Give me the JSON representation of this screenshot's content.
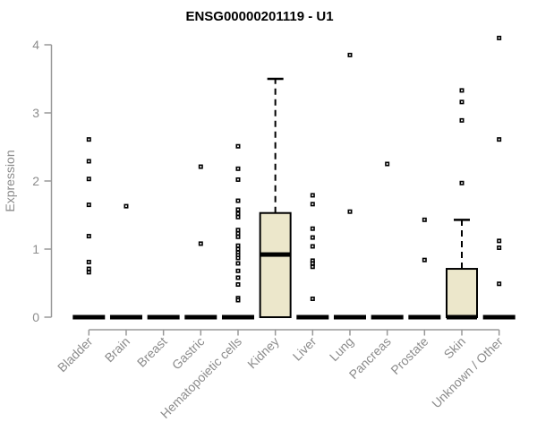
{
  "chart_data": {
    "type": "boxplot",
    "title": "ENSG00000201119 - U1",
    "ylabel": "Expression",
    "xlabel": "",
    "ylim": [
      0,
      4
    ],
    "y_ticks": [
      0,
      1,
      2,
      3,
      4
    ],
    "grid": false,
    "legend": false,
    "categories": [
      "Bladder",
      "Brain",
      "Breast",
      "Gastric",
      "Hematopoietic cells",
      "Kidney",
      "Liver",
      "Lung",
      "Pancreas",
      "Prostate",
      "Skin",
      "Unknown / Other"
    ],
    "boxes": [
      {
        "category": "Bladder",
        "q1": 0,
        "median": 0,
        "q3": 0,
        "whisker_high": null,
        "outliers": [
          2.61,
          2.29,
          2.03,
          1.65,
          1.19,
          0.81,
          0.71,
          0.66
        ]
      },
      {
        "category": "Brain",
        "q1": 0,
        "median": 0,
        "q3": 0,
        "whisker_high": null,
        "outliers": [
          1.63
        ]
      },
      {
        "category": "Breast",
        "q1": 0,
        "median": 0,
        "q3": 0,
        "whisker_high": null,
        "outliers": []
      },
      {
        "category": "Gastric",
        "q1": 0,
        "median": 0,
        "q3": 0,
        "whisker_high": null,
        "outliers": [
          2.21,
          1.08
        ]
      },
      {
        "category": "Hematopoietic cells",
        "q1": 0,
        "median": 0,
        "q3": 0,
        "whisker_high": null,
        "outliers": [
          2.51,
          2.18,
          2.02,
          1.71,
          1.58,
          1.52,
          1.47,
          1.28,
          1.23,
          1.18,
          1.05,
          1.0,
          0.95,
          0.91,
          0.87,
          0.79,
          0.68,
          0.58,
          0.48,
          0.28,
          0.25
        ]
      },
      {
        "category": "Kidney",
        "q1": 0,
        "median": 0.92,
        "q3": 1.53,
        "whisker_high": 3.5,
        "outliers": []
      },
      {
        "category": "Liver",
        "q1": 0,
        "median": 0,
        "q3": 0,
        "whisker_high": null,
        "outliers": [
          1.79,
          1.66,
          1.3,
          1.17,
          1.04,
          0.83,
          0.79,
          0.74,
          0.27
        ]
      },
      {
        "category": "Lung",
        "q1": 0,
        "median": 0,
        "q3": 0,
        "whisker_high": null,
        "outliers": [
          3.85,
          1.55
        ]
      },
      {
        "category": "Pancreas",
        "q1": 0,
        "median": 0,
        "q3": 0,
        "whisker_high": null,
        "outliers": [
          2.25
        ]
      },
      {
        "category": "Prostate",
        "q1": 0,
        "median": 0,
        "q3": 0,
        "whisker_high": null,
        "outliers": [
          1.43,
          0.84
        ]
      },
      {
        "category": "Skin",
        "q1": 0,
        "median": 0,
        "q3": 0.71,
        "whisker_high": 1.43,
        "outliers": [
          3.33,
          3.16,
          2.89,
          1.97
        ]
      },
      {
        "category": "Unknown / Other",
        "q1": 0,
        "median": 0,
        "q3": 0,
        "whisker_high": null,
        "outliers": [
          4.1,
          2.61,
          1.12,
          1.02,
          0.49
        ]
      }
    ]
  },
  "colors": {
    "background": "#ffffff",
    "title_text": "#000000",
    "axis": "#999999",
    "tick_text": "#8c8c8c",
    "box_fill": "#ece7cb",
    "box_border": "#000000",
    "median": "#000000",
    "outlier_fill": "#ffffff"
  }
}
